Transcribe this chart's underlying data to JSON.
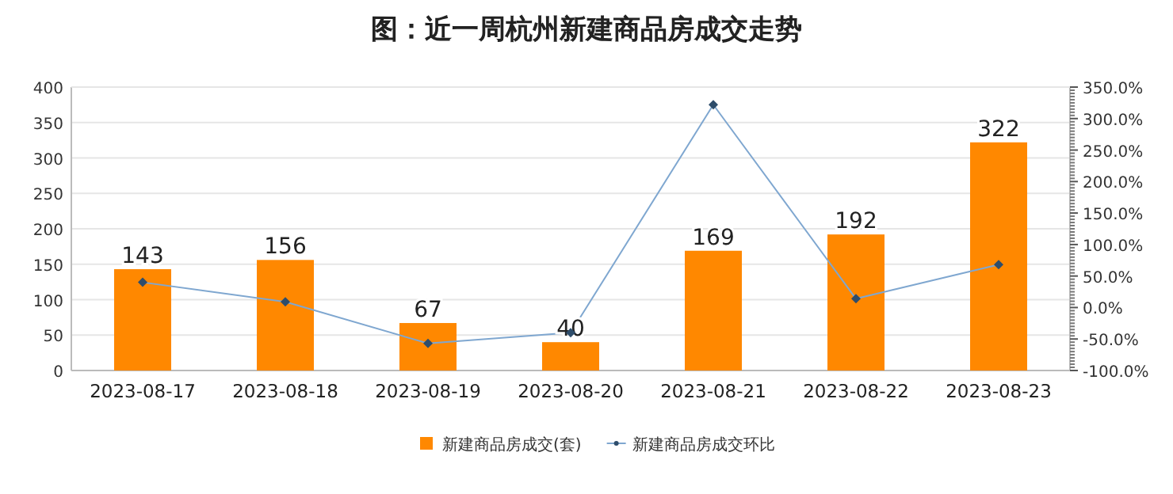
{
  "chart_data": {
    "type": "bar",
    "title": "图：近一周杭州新建商品房成交走势",
    "categories": [
      "2023-08-17",
      "2023-08-18",
      "2023-08-19",
      "2023-08-20",
      "2023-08-21",
      "2023-08-22",
      "2023-08-23"
    ],
    "series": [
      {
        "name": "新建商品房成交(套)",
        "type": "bar",
        "color": "#ff8800",
        "values": [
          143,
          156,
          67,
          40,
          169,
          192,
          322
        ],
        "value_labels": [
          "143",
          "156",
          "67",
          "40",
          "169",
          "192",
          "322"
        ]
      },
      {
        "name": "新建商品房成交环比",
        "type": "line",
        "axis": "y2",
        "color": "#7fa7d0",
        "values": [
          40,
          9,
          -57,
          -40,
          322,
          14,
          68
        ]
      }
    ],
    "ylim": [
      0,
      400
    ],
    "yticks": [
      0,
      50,
      100,
      150,
      200,
      250,
      300,
      350,
      400
    ],
    "y2lim": [
      -100,
      350
    ],
    "y2ticks": [
      {
        "value": -100,
        "label": "-100.0%"
      },
      {
        "value": -50,
        "label": "-50.0%"
      },
      {
        "value": 0,
        "label": "0.0%"
      },
      {
        "value": 50,
        "label": "50.0%"
      },
      {
        "value": 100,
        "label": "100.0%"
      },
      {
        "value": 150,
        "label": "150.0%"
      },
      {
        "value": 200,
        "label": "200.0%"
      },
      {
        "value": 250,
        "label": "250.0%"
      },
      {
        "value": 300,
        "label": "300.0%"
      },
      {
        "value": 350,
        "label": "350.0%"
      }
    ],
    "grid": "y",
    "legend": "bottom",
    "marker": "diamond"
  }
}
